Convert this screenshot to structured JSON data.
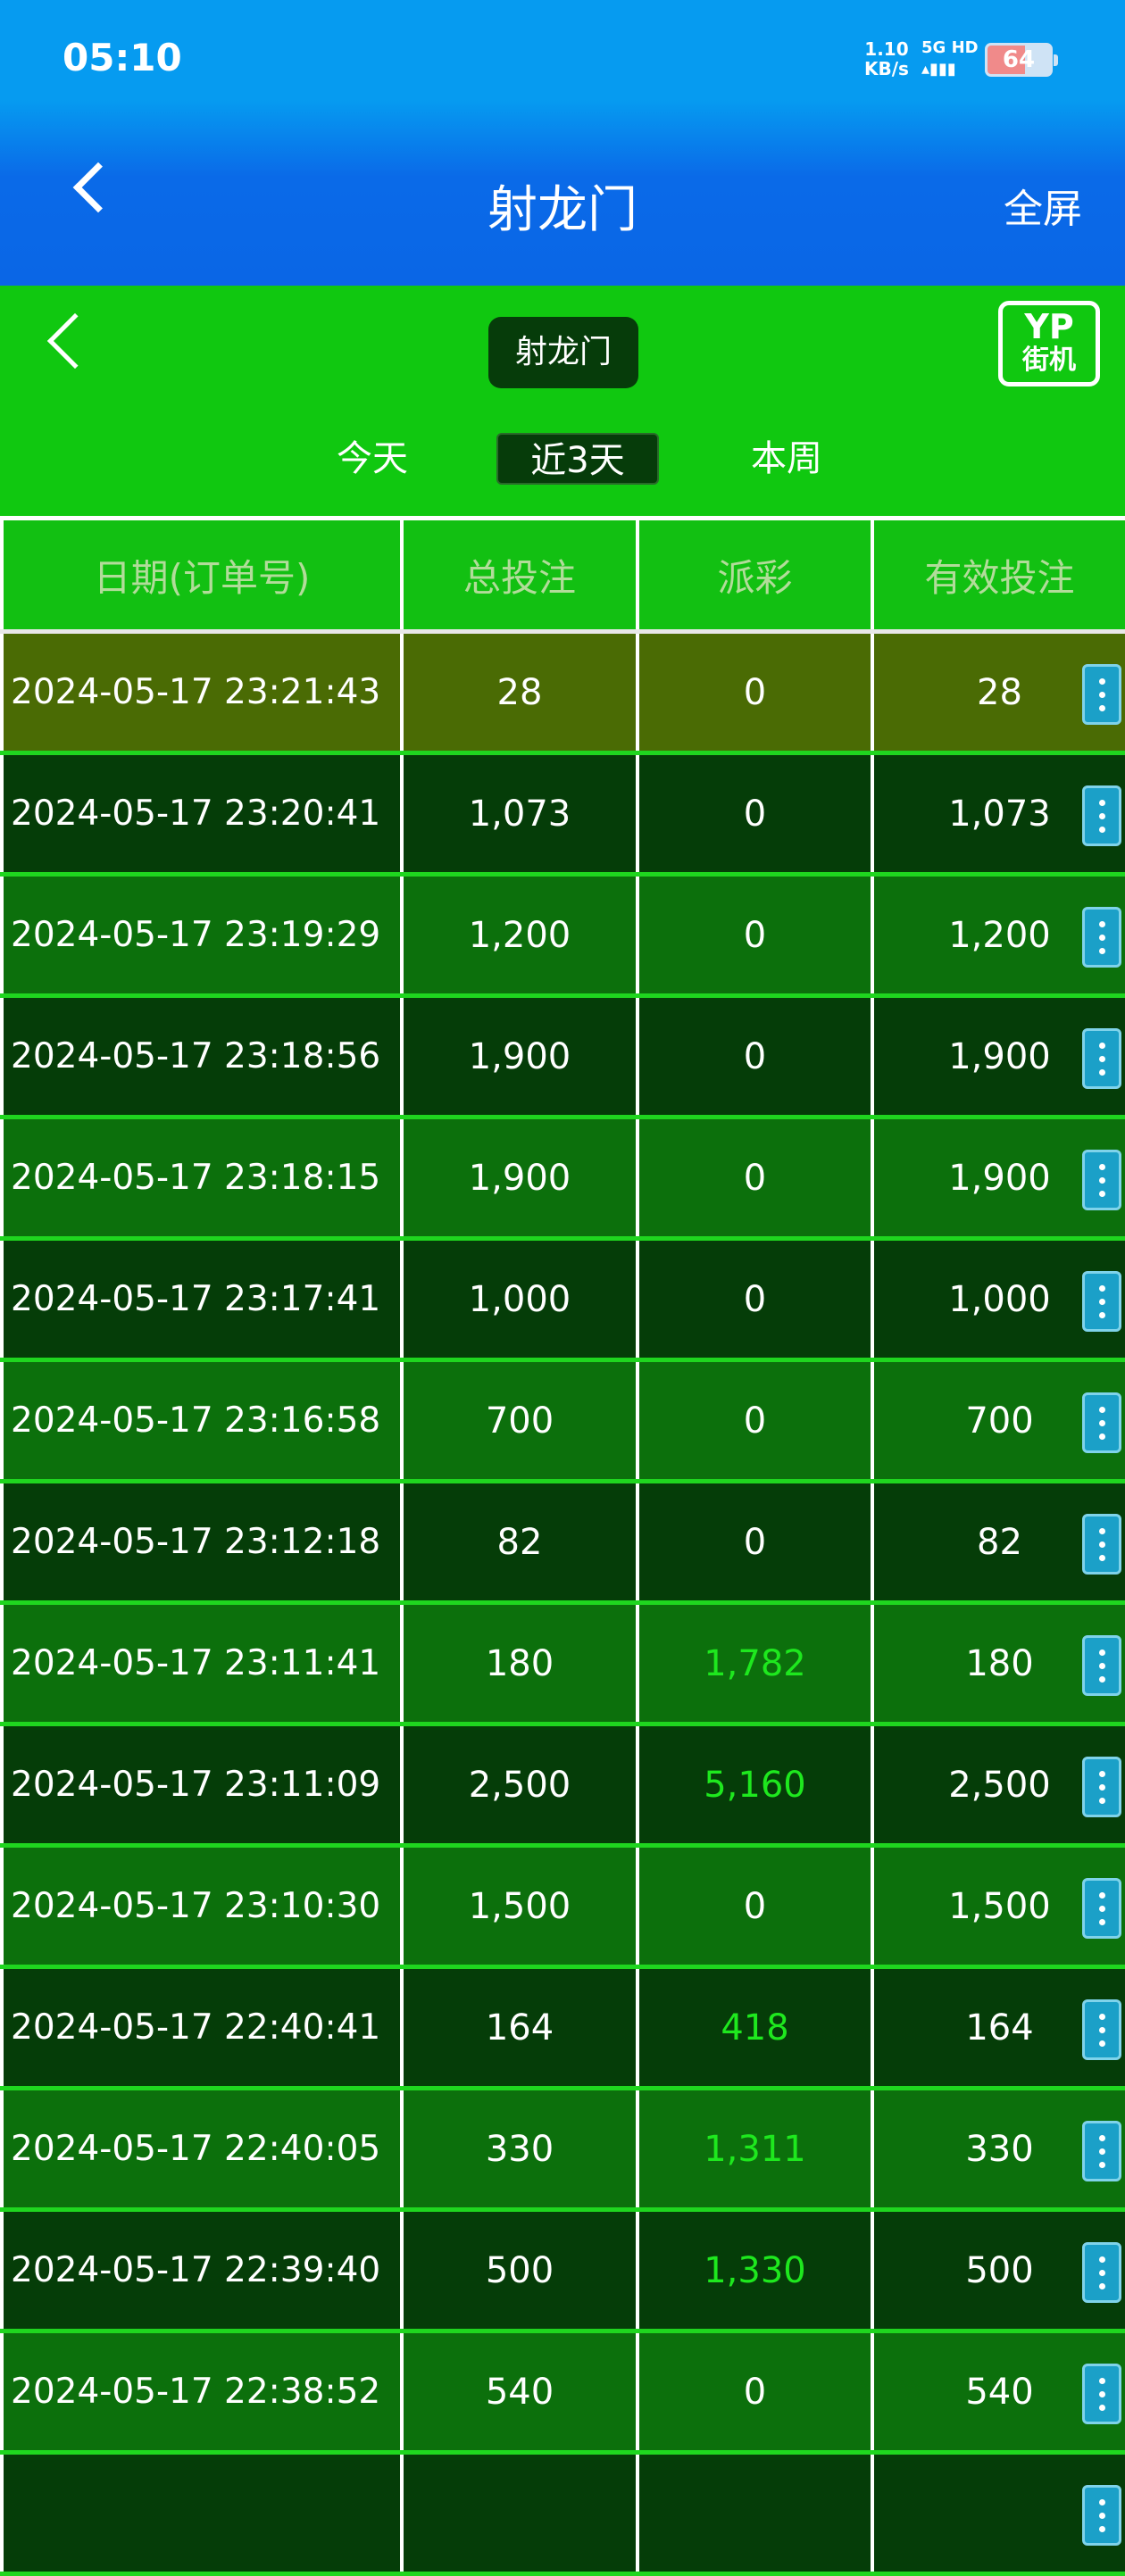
{
  "status_bar": {
    "time": "05:10",
    "net_speed": "1.10",
    "net_unit": "KB/s",
    "network": "5G HD",
    "battery": "64"
  },
  "header": {
    "title": "射龙门",
    "fullscreen_label": "全屏"
  },
  "game": {
    "title": "射龙门",
    "logo_top": "YP",
    "logo_bottom": "街机",
    "ranges": [
      {
        "label": "今天",
        "active": false
      },
      {
        "label": "近3天",
        "active": true
      },
      {
        "label": "本周",
        "active": false
      }
    ]
  },
  "table": {
    "columns": [
      "日期(订单号)",
      "总投注",
      "派彩",
      "有效投注"
    ],
    "win_color": "#1ee81e",
    "rows": [
      {
        "date": "2024-05-17 23:21:43",
        "bet": "28",
        "payout": "0",
        "valid": "28"
      },
      {
        "date": "2024-05-17 23:20:41",
        "bet": "1,073",
        "payout": "0",
        "valid": "1,073"
      },
      {
        "date": "2024-05-17 23:19:29",
        "bet": "1,200",
        "payout": "0",
        "valid": "1,200"
      },
      {
        "date": "2024-05-17 23:18:56",
        "bet": "1,900",
        "payout": "0",
        "valid": "1,900"
      },
      {
        "date": "2024-05-17 23:18:15",
        "bet": "1,900",
        "payout": "0",
        "valid": "1,900"
      },
      {
        "date": "2024-05-17 23:17:41",
        "bet": "1,000",
        "payout": "0",
        "valid": "1,000"
      },
      {
        "date": "2024-05-17 23:16:58",
        "bet": "700",
        "payout": "0",
        "valid": "700"
      },
      {
        "date": "2024-05-17 23:12:18",
        "bet": "82",
        "payout": "0",
        "valid": "82"
      },
      {
        "date": "2024-05-17 23:11:41",
        "bet": "180",
        "payout": "1,782",
        "valid": "180"
      },
      {
        "date": "2024-05-17 23:11:09",
        "bet": "2,500",
        "payout": "5,160",
        "valid": "2,500"
      },
      {
        "date": "2024-05-17 23:10:30",
        "bet": "1,500",
        "payout": "0",
        "valid": "1,500"
      },
      {
        "date": "2024-05-17 22:40:41",
        "bet": "164",
        "payout": "418",
        "valid": "164"
      },
      {
        "date": "2024-05-17 22:40:05",
        "bet": "330",
        "payout": "1,311",
        "valid": "330"
      },
      {
        "date": "2024-05-17 22:39:40",
        "bet": "500",
        "payout": "1,330",
        "valid": "500"
      },
      {
        "date": "2024-05-17 22:38:52",
        "bet": "540",
        "payout": "0",
        "valid": "540"
      }
    ]
  }
}
